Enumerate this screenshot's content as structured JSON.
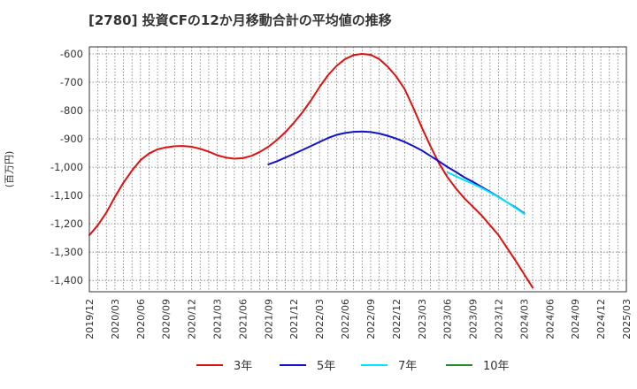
{
  "chart_data": {
    "type": "line",
    "title": "[2780]  投資CFの12か月移動合計の平均値の推移",
    "ylabel": "(百万円)",
    "xlabel": "",
    "ylim": [
      -1440,
      -575
    ],
    "yticks": [
      -600,
      -700,
      -800,
      -900,
      -1000,
      -1100,
      -1200,
      -1300,
      -1400
    ],
    "ytick_labels": [
      "-600",
      "-700",
      "-800",
      "-900",
      "-1,000",
      "-1,100",
      "-1,200",
      "-1,300",
      "-1,400"
    ],
    "x_start": "2019/12",
    "x_ticks": [
      "2019/12",
      "2020/03",
      "2020/06",
      "2020/09",
      "2020/12",
      "2021/03",
      "2021/06",
      "2021/09",
      "2021/12",
      "2022/03",
      "2022/06",
      "2022/09",
      "2022/12",
      "2023/03",
      "2023/06",
      "2023/09",
      "2023/12",
      "2024/03",
      "2024/06",
      "2024/09",
      "2024/12",
      "2025/03"
    ],
    "grid": true,
    "legend_position": "bottom",
    "series": [
      {
        "name": "3年",
        "color": "#dd1111",
        "start": "2019/12",
        "values": [
          -1240,
          -1205,
          -1160,
          -1105,
          -1055,
          -1012,
          -975,
          -952,
          -937,
          -930,
          -926,
          -925,
          -928,
          -935,
          -945,
          -958,
          -966,
          -970,
          -968,
          -960,
          -946,
          -928,
          -904,
          -876,
          -843,
          -806,
          -764,
          -717,
          -675,
          -642,
          -618,
          -604,
          -600,
          -603,
          -618,
          -645,
          -680,
          -725,
          -790,
          -860,
          -925,
          -985,
          -1035,
          -1075,
          -1110,
          -1140,
          -1170,
          -1205,
          -1240,
          -1285,
          -1330,
          -1378,
          -1425
        ]
      },
      {
        "name": "5年",
        "color": "#1111cc",
        "start": "2021/09",
        "values": [
          -990,
          -979,
          -966,
          -953,
          -939,
          -925,
          -911,
          -897,
          -886,
          -879,
          -875,
          -874,
          -876,
          -881,
          -889,
          -899,
          -911,
          -925,
          -941,
          -960,
          -979,
          -999,
          -1017,
          -1036,
          -1052,
          -1069,
          -1087,
          -1105,
          -1124,
          -1142,
          -1163
        ]
      },
      {
        "name": "7年",
        "color": "#00e5ff",
        "start": "2023/06",
        "values": [
          -1018,
          -1032,
          -1046,
          -1059,
          -1073,
          -1089,
          -1106,
          -1124,
          -1144,
          -1165
        ]
      },
      {
        "name": "10年",
        "color": "#228b22",
        "start": "",
        "values": []
      }
    ]
  }
}
